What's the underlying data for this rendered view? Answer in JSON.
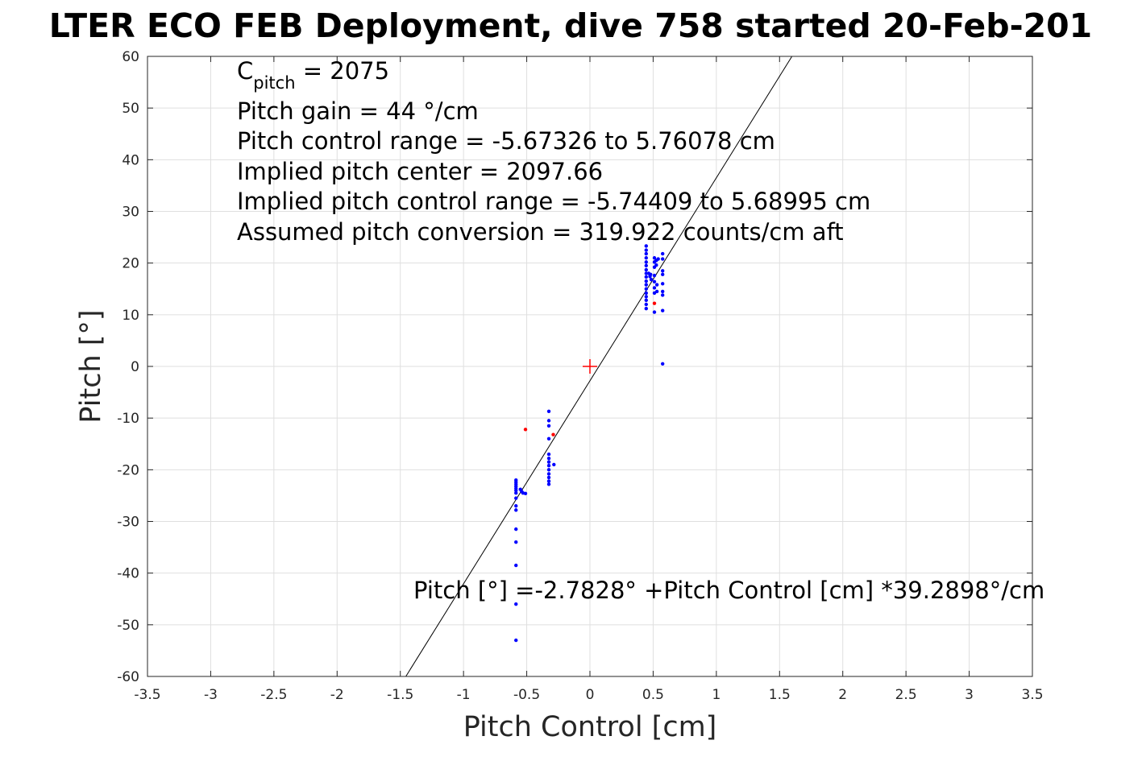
{
  "chart_data": {
    "type": "scatter",
    "title": "LTER ECO FEB Deployment, dive 758 started 20-Feb-201",
    "xlabel": "Pitch Control [cm]",
    "ylabel": "Pitch [°]",
    "xlim": [
      -3.5,
      3.5
    ],
    "ylim": [
      -60,
      60
    ],
    "xticks": [
      -3.5,
      -3,
      -2.5,
      -2,
      -1.5,
      -1,
      -0.5,
      0,
      0.5,
      1,
      1.5,
      2,
      2.5,
      3,
      3.5
    ],
    "xtick_labels": [
      "-3.5",
      "-3",
      "-2.5",
      "-2",
      "-1.5",
      "-1",
      "-0.5",
      "0",
      "0.5",
      "1",
      "1.5",
      "2",
      "2.5",
      "3",
      "3.5"
    ],
    "yticks": [
      -60,
      -50,
      -40,
      -30,
      -20,
      -10,
      0,
      10,
      20,
      30,
      40,
      50,
      60
    ],
    "ytick_labels": [
      "-60",
      "-50",
      "-40",
      "-30",
      "-20",
      "-10",
      "0",
      "10",
      "20",
      "30",
      "40",
      "50",
      "60"
    ],
    "grid": true,
    "annotations": {
      "c_pitch_main": "C",
      "c_pitch_sub": "pitch",
      "c_pitch_rest": " = 2075",
      "lines": [
        "Pitch gain = 44 °/cm",
        "Pitch control range = -5.67326 to 5.76078 cm",
        "Implied pitch center = 2097.66",
        "Implied pitch control range = -5.74409 to 5.68995 cm",
        "Assumed pitch conversion = 319.922 counts/cm aft"
      ],
      "fit_equation": "Pitch [°] =-2.7828° +Pitch Control [cm] *39.2898°/cm"
    },
    "fit_line": {
      "intercept": -2.7828,
      "slope": 39.2898,
      "color": "#000000"
    },
    "center_marker": {
      "x": 0,
      "y": 0,
      "color": "#ff0000"
    },
    "series": [
      {
        "color": "#0000ff",
        "points": [
          [
            -0.585,
            -22.0
          ],
          [
            -0.585,
            -22.4
          ],
          [
            -0.585,
            -22.8
          ],
          [
            -0.585,
            -23.2
          ],
          [
            -0.585,
            -23.6
          ],
          [
            -0.585,
            -24.0
          ],
          [
            -0.585,
            -24.5
          ],
          [
            -0.585,
            -25.5
          ],
          [
            -0.585,
            -27.0
          ],
          [
            -0.585,
            -27.8
          ],
          [
            -0.585,
            -31.5
          ],
          [
            -0.585,
            -34.0
          ],
          [
            -0.585,
            -38.5
          ],
          [
            -0.585,
            -46.0
          ],
          [
            -0.585,
            -53.0
          ],
          [
            -0.55,
            -23.8
          ],
          [
            -0.54,
            -24.2
          ],
          [
            -0.53,
            -24.5
          ],
          [
            -0.51,
            -24.6
          ],
          [
            -0.325,
            -8.7
          ],
          [
            -0.325,
            -10.5
          ],
          [
            -0.325,
            -11.5
          ],
          [
            -0.325,
            -14.0
          ],
          [
            -0.325,
            -17.0
          ],
          [
            -0.325,
            -17.8
          ],
          [
            -0.325,
            -18.5
          ],
          [
            -0.325,
            -19.2
          ],
          [
            -0.325,
            -20.0
          ],
          [
            -0.325,
            -20.8
          ],
          [
            -0.325,
            -21.5
          ],
          [
            -0.325,
            -22.2
          ],
          [
            -0.325,
            -22.8
          ],
          [
            -0.285,
            -19.0
          ],
          [
            0.445,
            23.3
          ],
          [
            0.445,
            22.5
          ],
          [
            0.445,
            21.8
          ],
          [
            0.445,
            21.0
          ],
          [
            0.445,
            20.2
          ],
          [
            0.445,
            19.5
          ],
          [
            0.445,
            18.7
          ],
          [
            0.445,
            18.0
          ],
          [
            0.445,
            17.3
          ],
          [
            0.445,
            16.5
          ],
          [
            0.445,
            15.8
          ],
          [
            0.445,
            15.0
          ],
          [
            0.445,
            14.2
          ],
          [
            0.445,
            13.5
          ],
          [
            0.445,
            12.8
          ],
          [
            0.445,
            12.0
          ],
          [
            0.445,
            11.2
          ],
          [
            0.465,
            18.0
          ],
          [
            0.475,
            17.4
          ],
          [
            0.485,
            16.8
          ],
          [
            0.48,
            17.8
          ],
          [
            0.51,
            21.0
          ],
          [
            0.51,
            20.2
          ],
          [
            0.51,
            19.2
          ],
          [
            0.51,
            17.6
          ],
          [
            0.51,
            16.4
          ],
          [
            0.51,
            15.2
          ],
          [
            0.51,
            14.2
          ],
          [
            0.51,
            10.5
          ],
          [
            0.525,
            20.5
          ],
          [
            0.525,
            19.6
          ],
          [
            0.53,
            15.8
          ],
          [
            0.53,
            14.5
          ],
          [
            0.54,
            20.8
          ],
          [
            0.575,
            21.8
          ],
          [
            0.575,
            20.8
          ],
          [
            0.575,
            18.5
          ],
          [
            0.575,
            17.8
          ],
          [
            0.575,
            16.0
          ],
          [
            0.575,
            14.5
          ],
          [
            0.575,
            13.8
          ],
          [
            0.575,
            10.8
          ],
          [
            0.575,
            0.5
          ]
        ]
      },
      {
        "color": "#ff0000",
        "points": [
          [
            -0.51,
            -12.2
          ],
          [
            -0.29,
            -13.2
          ],
          [
            0.51,
            12.2
          ]
        ]
      }
    ]
  }
}
